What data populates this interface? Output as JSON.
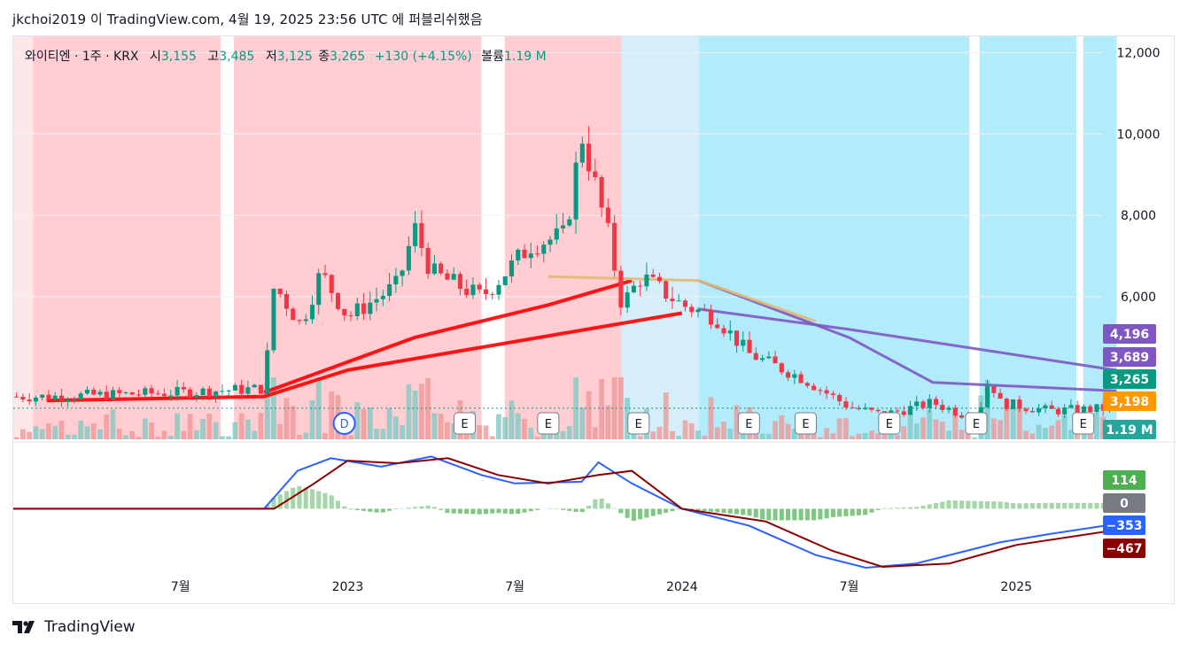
{
  "header": {
    "text": "jkchoi2019 이 TradingView.com, 4월 19, 2025 23:56 UTC 에 퍼블리쉬했음"
  },
  "legend": {
    "symbol": "와이티엔 · 1주 · KRX",
    "open_label": "시",
    "open": "3,155",
    "high_label": "고",
    "high": "3,485",
    "low_label": "저",
    "low": "3,125",
    "close_label": "종",
    "close": "3,265",
    "change": "+130 (+4.15%)",
    "volume_label": "볼륨",
    "volume": "1.19 M"
  },
  "footer": {
    "brand": "TradingView",
    "logo_icon": "tradingview-logo-icon"
  },
  "colors": {
    "up": "#089981",
    "down": "#f23645",
    "macd": "#2962ff",
    "signal": "#8b0000",
    "ma_purple": "#7e57c2",
    "ma_tan": "#e2b970",
    "ma_red": "#ff0000"
  },
  "chart_data": {
    "type": "candlestick",
    "price_axis": {
      "min": 2500,
      "max": 12400,
      "ticks": [
        6000,
        8000,
        10000,
        12000
      ],
      "tick_labels": [
        "6,000",
        "8,000",
        "10,000",
        "12,000"
      ]
    },
    "x_axis": {
      "ticks": [
        {
          "label": "7월",
          "year": 2022.5
        },
        {
          "label": "2023",
          "year": 2023.0
        },
        {
          "label": "7월",
          "year": 2023.5
        },
        {
          "label": "2024",
          "year": 2024.0
        },
        {
          "label": "7월",
          "year": 2024.5
        },
        {
          "label": "2025",
          "year": 2025.0
        }
      ]
    },
    "price_labels": [
      {
        "value": 4196,
        "text": "4,196",
        "color": "#7e57c2"
      },
      {
        "value": 3689,
        "text": "3,689",
        "color": "#7e57c2"
      },
      {
        "value": 3265,
        "text": "3,265",
        "color": "#089981"
      },
      {
        "value": 3198,
        "text": "3,198",
        "color": "#ff9800"
      }
    ],
    "volume_label": {
      "text": "1.19 M",
      "color": "#26a69a"
    },
    "events": [
      {
        "type": "D",
        "year": 2022.99
      },
      {
        "type": "E",
        "year": 2023.35
      },
      {
        "type": "E",
        "year": 2023.6
      },
      {
        "type": "E",
        "year": 2023.87
      },
      {
        "type": "E",
        "year": 2024.2
      },
      {
        "type": "E",
        "year": 2024.37
      },
      {
        "type": "E",
        "year": 2024.62
      },
      {
        "type": "E",
        "year": 2024.88
      },
      {
        "type": "E",
        "year": 2025.2
      }
    ],
    "macd": {
      "range": [
        -700,
        750
      ],
      "labels": [
        {
          "value": 114,
          "text": "114",
          "color": "#4caf50"
        },
        {
          "value": 0,
          "text": "0",
          "color": "#787b86"
        },
        {
          "value": -353,
          "text": "−353",
          "color": "#2962ff"
        },
        {
          "value": -467,
          "text": "−467",
          "color": "#8b0000"
        }
      ]
    },
    "close_series": [
      {
        "year": 2022.1,
        "close": 3550
      },
      {
        "year": 2022.5,
        "close": 3650
      },
      {
        "year": 2022.75,
        "close": 3750
      },
      {
        "year": 2022.78,
        "close": 6300
      },
      {
        "year": 2022.86,
        "close": 5300
      },
      {
        "year": 2022.92,
        "close": 6600
      },
      {
        "year": 2023.0,
        "close": 5500
      },
      {
        "year": 2023.15,
        "close": 6300
      },
      {
        "year": 2023.2,
        "close": 7700
      },
      {
        "year": 2023.25,
        "close": 6600
      },
      {
        "year": 2023.4,
        "close": 6000
      },
      {
        "year": 2023.45,
        "close": 6400
      },
      {
        "year": 2023.55,
        "close": 7300
      },
      {
        "year": 2023.65,
        "close": 7500
      },
      {
        "year": 2023.7,
        "close": 10000
      },
      {
        "year": 2023.78,
        "close": 7500
      },
      {
        "year": 2023.82,
        "close": 5800
      },
      {
        "year": 2023.88,
        "close": 6500
      },
      {
        "year": 2024.0,
        "close": 5800
      },
      {
        "year": 2024.1,
        "close": 5500
      },
      {
        "year": 2024.2,
        "close": 4600
      },
      {
        "year": 2024.28,
        "close": 4300
      },
      {
        "year": 2024.36,
        "close": 4000
      },
      {
        "year": 2024.5,
        "close": 3300
      },
      {
        "year": 2024.6,
        "close": 3100
      },
      {
        "year": 2024.75,
        "close": 3400
      },
      {
        "year": 2024.88,
        "close": 3000
      },
      {
        "year": 2024.92,
        "close": 4000
      },
      {
        "year": 2024.95,
        "close": 3400
      },
      {
        "year": 2025.1,
        "close": 3200
      },
      {
        "year": 2025.3,
        "close": 3265
      }
    ],
    "moving_averages": [
      {
        "color": "#7e57c2",
        "points": [
          [
            2024.05,
            5700
          ],
          [
            2024.5,
            5200
          ],
          [
            2025.3,
            4196
          ]
        ]
      },
      {
        "color": "#7e57c2",
        "points": [
          [
            2024.05,
            6400
          ],
          [
            2024.5,
            5000
          ],
          [
            2024.75,
            3900
          ],
          [
            2025.3,
            3689
          ]
        ]
      },
      {
        "color": "#ff0000",
        "points": [
          [
            2022.1,
            3450
          ],
          [
            2022.75,
            3550
          ],
          [
            2023.0,
            4200
          ],
          [
            2023.5,
            4900
          ],
          [
            2024.0,
            5600
          ]
        ]
      },
      {
        "color": "#ff0000",
        "points": [
          [
            2022.75,
            3650
          ],
          [
            2023.2,
            5000
          ],
          [
            2023.6,
            5800
          ],
          [
            2023.85,
            6400
          ]
        ]
      },
      {
        "color": "#e2b970",
        "points": [
          [
            2023.6,
            6500
          ],
          [
            2024.05,
            6400
          ],
          [
            2024.4,
            5400
          ]
        ]
      }
    ]
  }
}
